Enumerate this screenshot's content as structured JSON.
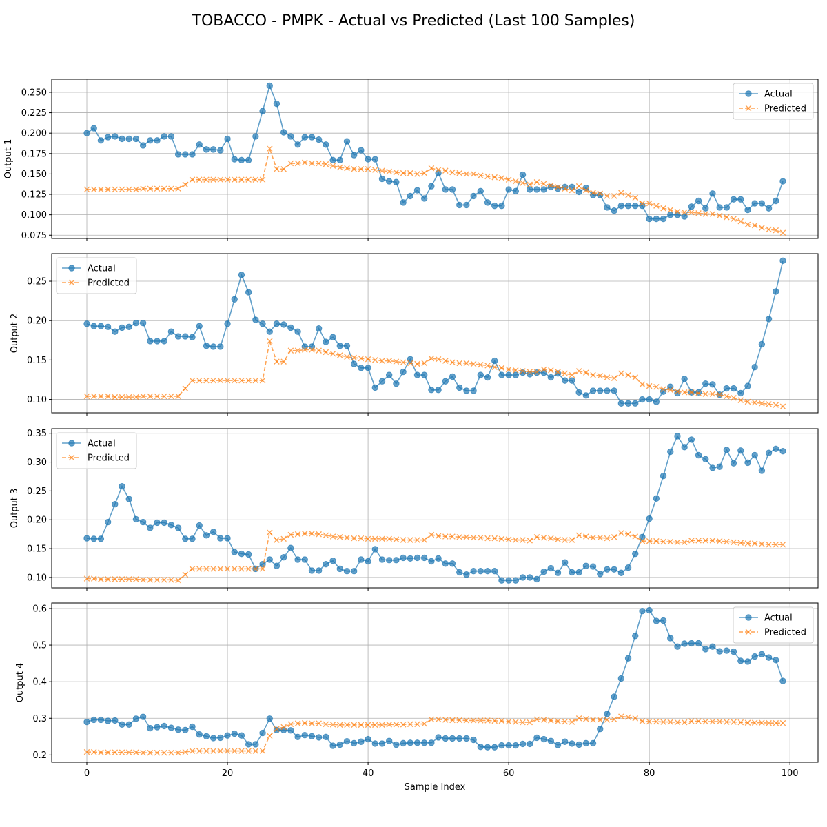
{
  "title": "TOBACCO - PMPK - Actual vs Predicted (Last 100 Samples)",
  "colors": {
    "actual": "#1f77b4",
    "predicted": "#ff7f0e",
    "grid": "#b0b0b0"
  },
  "chart_data": [
    {
      "type": "line",
      "ylabel": "Output 1",
      "xlabel": "",
      "xlim": [
        -5,
        104
      ],
      "ylim": [
        0.071,
        0.266
      ],
      "xticks": [
        0,
        20,
        40,
        60,
        80,
        100
      ],
      "yticks": [
        0.075,
        0.1,
        0.125,
        0.15,
        0.175,
        0.2,
        0.225,
        0.25
      ],
      "ytick_labels": [
        "0.075",
        "0.100",
        "0.125",
        "0.150",
        "0.175",
        "0.200",
        "0.225",
        "0.250"
      ],
      "grid": true,
      "legend_position": "top-right",
      "series": [
        {
          "name": "Actual",
          "style": "solid-circle",
          "values": [
            0.2,
            0.206,
            0.191,
            0.195,
            0.196,
            0.193,
            0.193,
            0.193,
            0.185,
            0.191,
            0.191,
            0.196,
            0.196,
            0.174,
            0.174,
            0.174,
            0.186,
            0.18,
            0.18,
            0.179,
            0.193,
            0.168,
            0.167,
            0.167,
            0.196,
            0.227,
            0.258,
            0.236,
            0.201,
            0.196,
            0.186,
            0.195,
            0.195,
            0.192,
            0.186,
            0.167,
            0.167,
            0.19,
            0.173,
            0.179,
            0.168,
            0.168,
            0.144,
            0.141,
            0.14,
            0.115,
            0.123,
            0.13,
            0.12,
            0.135,
            0.151,
            0.131,
            0.131,
            0.112,
            0.112,
            0.123,
            0.129,
            0.115,
            0.111,
            0.111,
            0.131,
            0.129,
            0.149,
            0.131,
            0.131,
            0.131,
            0.134,
            0.132,
            0.134,
            0.134,
            0.128,
            0.133,
            0.124,
            0.124,
            0.109,
            0.105,
            0.111,
            0.111,
            0.111,
            0.111,
            0.095,
            0.095,
            0.095,
            0.1,
            0.1,
            0.098,
            0.11,
            0.117,
            0.108,
            0.126,
            0.109,
            0.109,
            0.119,
            0.119,
            0.106,
            0.114,
            0.114,
            0.108,
            0.117,
            0.141
          ]
        },
        {
          "name": "Predicted",
          "style": "dashed-x",
          "values": [
            0.131,
            0.131,
            0.131,
            0.131,
            0.131,
            0.131,
            0.131,
            0.131,
            0.132,
            0.132,
            0.132,
            0.132,
            0.132,
            0.132,
            0.137,
            0.143,
            0.143,
            0.143,
            0.143,
            0.143,
            0.143,
            0.143,
            0.143,
            0.143,
            0.143,
            0.143,
            0.181,
            0.156,
            0.156,
            0.163,
            0.163,
            0.164,
            0.163,
            0.163,
            0.162,
            0.16,
            0.158,
            0.157,
            0.156,
            0.156,
            0.156,
            0.155,
            0.154,
            0.153,
            0.152,
            0.151,
            0.151,
            0.15,
            0.151,
            0.157,
            0.155,
            0.154,
            0.152,
            0.151,
            0.15,
            0.15,
            0.148,
            0.147,
            0.146,
            0.145,
            0.143,
            0.141,
            0.139,
            0.137,
            0.14,
            0.138,
            0.136,
            0.134,
            0.132,
            0.13,
            0.135,
            0.13,
            0.127,
            0.126,
            0.123,
            0.123,
            0.127,
            0.124,
            0.121,
            0.114,
            0.114,
            0.111,
            0.108,
            0.106,
            0.104,
            0.103,
            0.103,
            0.102,
            0.101,
            0.101,
            0.099,
            0.097,
            0.095,
            0.092,
            0.088,
            0.087,
            0.084,
            0.082,
            0.081,
            0.078
          ]
        }
      ]
    },
    {
      "type": "line",
      "ylabel": "Output 2",
      "xlabel": "",
      "xlim": [
        -5,
        104
      ],
      "ylim": [
        0.083,
        0.285
      ],
      "xticks": [
        0,
        20,
        40,
        60,
        80,
        100
      ],
      "yticks": [
        0.1,
        0.15,
        0.2,
        0.25
      ],
      "ytick_labels": [
        "0.10",
        "0.15",
        "0.20",
        "0.25"
      ],
      "grid": true,
      "legend_position": "top-left",
      "series": [
        {
          "name": "Actual",
          "style": "solid-circle",
          "values": [
            0.196,
            0.193,
            0.193,
            0.192,
            0.186,
            0.191,
            0.192,
            0.197,
            0.197,
            0.174,
            0.174,
            0.174,
            0.186,
            0.18,
            0.18,
            0.179,
            0.193,
            0.168,
            0.167,
            0.167,
            0.196,
            0.227,
            0.258,
            0.236,
            0.201,
            0.196,
            0.186,
            0.196,
            0.195,
            0.191,
            0.186,
            0.167,
            0.167,
            0.19,
            0.173,
            0.179,
            0.168,
            0.168,
            0.145,
            0.14,
            0.14,
            0.115,
            0.123,
            0.131,
            0.12,
            0.135,
            0.151,
            0.131,
            0.131,
            0.112,
            0.112,
            0.123,
            0.129,
            0.115,
            0.111,
            0.111,
            0.131,
            0.128,
            0.149,
            0.131,
            0.131,
            0.131,
            0.134,
            0.132,
            0.134,
            0.134,
            0.128,
            0.133,
            0.124,
            0.124,
            0.109,
            0.105,
            0.111,
            0.111,
            0.111,
            0.111,
            0.095,
            0.095,
            0.095,
            0.1,
            0.1,
            0.097,
            0.11,
            0.116,
            0.108,
            0.126,
            0.109,
            0.109,
            0.12,
            0.119,
            0.106,
            0.114,
            0.114,
            0.108,
            0.117,
            0.141,
            0.17,
            0.202,
            0.237,
            0.276
          ]
        },
        {
          "name": "Predicted",
          "style": "dashed-x",
          "values": [
            0.104,
            0.104,
            0.104,
            0.104,
            0.103,
            0.103,
            0.103,
            0.103,
            0.104,
            0.104,
            0.104,
            0.104,
            0.104,
            0.104,
            0.114,
            0.124,
            0.124,
            0.124,
            0.124,
            0.124,
            0.124,
            0.124,
            0.124,
            0.124,
            0.124,
            0.124,
            0.174,
            0.148,
            0.148,
            0.162,
            0.162,
            0.163,
            0.163,
            0.162,
            0.16,
            0.158,
            0.156,
            0.154,
            0.153,
            0.152,
            0.151,
            0.15,
            0.149,
            0.149,
            0.148,
            0.147,
            0.146,
            0.145,
            0.146,
            0.152,
            0.151,
            0.149,
            0.147,
            0.146,
            0.146,
            0.145,
            0.144,
            0.143,
            0.141,
            0.14,
            0.138,
            0.137,
            0.136,
            0.135,
            0.135,
            0.138,
            0.137,
            0.135,
            0.133,
            0.131,
            0.136,
            0.134,
            0.131,
            0.13,
            0.128,
            0.127,
            0.133,
            0.131,
            0.128,
            0.119,
            0.117,
            0.116,
            0.113,
            0.112,
            0.11,
            0.109,
            0.109,
            0.108,
            0.107,
            0.107,
            0.106,
            0.104,
            0.102,
            0.099,
            0.097,
            0.096,
            0.095,
            0.094,
            0.093,
            0.091
          ]
        }
      ]
    },
    {
      "type": "line",
      "ylabel": "Output 3",
      "xlabel": "",
      "xlim": [
        -5,
        104
      ],
      "ylim": [
        0.082,
        0.358
      ],
      "xticks": [
        0,
        20,
        40,
        60,
        80,
        100
      ],
      "yticks": [
        0.1,
        0.15,
        0.2,
        0.25,
        0.3,
        0.35
      ],
      "ytick_labels": [
        "0.10",
        "0.15",
        "0.20",
        "0.25",
        "0.30",
        "0.35"
      ],
      "grid": true,
      "legend_position": "top-left",
      "series": [
        {
          "name": "Actual",
          "style": "solid-circle",
          "values": [
            0.168,
            0.167,
            0.167,
            0.196,
            0.227,
            0.258,
            0.236,
            0.201,
            0.196,
            0.186,
            0.195,
            0.195,
            0.191,
            0.186,
            0.167,
            0.167,
            0.19,
            0.173,
            0.179,
            0.168,
            0.168,
            0.144,
            0.141,
            0.14,
            0.115,
            0.123,
            0.131,
            0.12,
            0.135,
            0.151,
            0.131,
            0.131,
            0.112,
            0.112,
            0.123,
            0.129,
            0.115,
            0.111,
            0.111,
            0.131,
            0.128,
            0.149,
            0.131,
            0.13,
            0.13,
            0.134,
            0.133,
            0.134,
            0.134,
            0.128,
            0.133,
            0.124,
            0.124,
            0.109,
            0.105,
            0.111,
            0.111,
            0.111,
            0.111,
            0.095,
            0.095,
            0.095,
            0.1,
            0.1,
            0.097,
            0.11,
            0.116,
            0.108,
            0.126,
            0.109,
            0.109,
            0.12,
            0.119,
            0.106,
            0.114,
            0.114,
            0.108,
            0.117,
            0.141,
            0.17,
            0.202,
            0.237,
            0.276,
            0.318,
            0.345,
            0.326,
            0.339,
            0.312,
            0.305,
            0.29,
            0.292,
            0.321,
            0.298,
            0.32,
            0.299,
            0.312,
            0.285,
            0.316,
            0.323,
            0.319
          ]
        },
        {
          "name": "Predicted",
          "style": "dashed-x",
          "values": [
            0.098,
            0.098,
            0.097,
            0.097,
            0.097,
            0.097,
            0.097,
            0.097,
            0.096,
            0.096,
            0.096,
            0.096,
            0.096,
            0.095,
            0.105,
            0.115,
            0.115,
            0.115,
            0.115,
            0.115,
            0.115,
            0.115,
            0.115,
            0.115,
            0.115,
            0.115,
            0.178,
            0.165,
            0.167,
            0.174,
            0.175,
            0.176,
            0.176,
            0.175,
            0.173,
            0.171,
            0.17,
            0.169,
            0.168,
            0.168,
            0.167,
            0.167,
            0.167,
            0.167,
            0.166,
            0.165,
            0.165,
            0.165,
            0.165,
            0.174,
            0.172,
            0.171,
            0.171,
            0.17,
            0.17,
            0.169,
            0.169,
            0.168,
            0.168,
            0.167,
            0.166,
            0.165,
            0.165,
            0.164,
            0.17,
            0.169,
            0.168,
            0.166,
            0.165,
            0.165,
            0.173,
            0.171,
            0.169,
            0.169,
            0.168,
            0.17,
            0.177,
            0.175,
            0.171,
            0.163,
            0.163,
            0.163,
            0.162,
            0.162,
            0.161,
            0.161,
            0.164,
            0.164,
            0.164,
            0.164,
            0.163,
            0.162,
            0.161,
            0.16,
            0.159,
            0.159,
            0.158,
            0.157,
            0.157,
            0.157
          ]
        }
      ]
    },
    {
      "type": "line",
      "ylabel": "Output 4",
      "xlabel": "Sample Index",
      "xlim": [
        -5,
        104
      ],
      "ylim": [
        0.18,
        0.615
      ],
      "xticks": [
        0,
        20,
        40,
        60,
        80,
        100
      ],
      "yticks": [
        0.2,
        0.3,
        0.4,
        0.5,
        0.6
      ],
      "ytick_labels": [
        "0.2",
        "0.3",
        "0.4",
        "0.5",
        "0.6"
      ],
      "xtick_labels": [
        "0",
        "20",
        "40",
        "60",
        "80",
        "100"
      ],
      "grid": true,
      "legend_position": "top-right",
      "series": [
        {
          "name": "Actual",
          "style": "solid-circle",
          "values": [
            0.29,
            0.296,
            0.296,
            0.293,
            0.294,
            0.283,
            0.283,
            0.299,
            0.304,
            0.273,
            0.276,
            0.279,
            0.274,
            0.269,
            0.268,
            0.277,
            0.256,
            0.251,
            0.246,
            0.247,
            0.253,
            0.258,
            0.253,
            0.229,
            0.229,
            0.26,
            0.299,
            0.268,
            0.268,
            0.267,
            0.249,
            0.254,
            0.251,
            0.248,
            0.249,
            0.225,
            0.228,
            0.237,
            0.232,
            0.236,
            0.243,
            0.231,
            0.231,
            0.238,
            0.228,
            0.232,
            0.233,
            0.233,
            0.233,
            0.233,
            0.248,
            0.245,
            0.245,
            0.245,
            0.245,
            0.241,
            0.222,
            0.221,
            0.221,
            0.226,
            0.226,
            0.226,
            0.23,
            0.23,
            0.247,
            0.243,
            0.238,
            0.227,
            0.236,
            0.231,
            0.228,
            0.232,
            0.232,
            0.271,
            0.312,
            0.359,
            0.409,
            0.464,
            0.525,
            0.593,
            0.595,
            0.566,
            0.567,
            0.519,
            0.496,
            0.504,
            0.505,
            0.505,
            0.489,
            0.496,
            0.483,
            0.485,
            0.482,
            0.457,
            0.455,
            0.469,
            0.475,
            0.466,
            0.459,
            0.402
          ]
        },
        {
          "name": "Predicted",
          "style": "dashed-x",
          "values": [
            0.208,
            0.208,
            0.207,
            0.207,
            0.207,
            0.207,
            0.207,
            0.207,
            0.206,
            0.206,
            0.206,
            0.206,
            0.206,
            0.206,
            0.208,
            0.211,
            0.211,
            0.211,
            0.211,
            0.211,
            0.211,
            0.211,
            0.211,
            0.211,
            0.211,
            0.211,
            0.252,
            0.271,
            0.276,
            0.284,
            0.286,
            0.287,
            0.286,
            0.286,
            0.284,
            0.283,
            0.282,
            0.282,
            0.282,
            0.282,
            0.282,
            0.282,
            0.282,
            0.283,
            0.283,
            0.283,
            0.284,
            0.284,
            0.285,
            0.297,
            0.297,
            0.296,
            0.295,
            0.295,
            0.294,
            0.294,
            0.294,
            0.294,
            0.293,
            0.293,
            0.291,
            0.29,
            0.289,
            0.289,
            0.297,
            0.296,
            0.294,
            0.292,
            0.291,
            0.29,
            0.3,
            0.298,
            0.296,
            0.296,
            0.296,
            0.297,
            0.305,
            0.303,
            0.3,
            0.292,
            0.291,
            0.291,
            0.29,
            0.29,
            0.289,
            0.289,
            0.292,
            0.292,
            0.291,
            0.291,
            0.291,
            0.29,
            0.29,
            0.289,
            0.288,
            0.288,
            0.288,
            0.287,
            0.287,
            0.287
          ]
        }
      ]
    }
  ]
}
